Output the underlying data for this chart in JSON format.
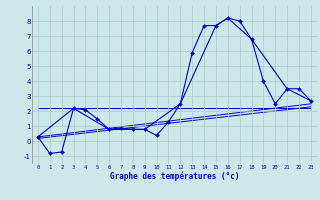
{
  "title": "Graphe des températures (°c)",
  "background_color": "#cce8e8",
  "grid_color": "#aacccc",
  "line_color": "#0000cc",
  "xlim": [
    -0.5,
    23.5
  ],
  "ylim": [
    -1.5,
    9.0
  ],
  "xticks": [
    0,
    1,
    2,
    3,
    4,
    5,
    6,
    7,
    8,
    9,
    10,
    11,
    12,
    13,
    14,
    15,
    16,
    17,
    18,
    19,
    20,
    21,
    22,
    23
  ],
  "yticks": [
    -1,
    0,
    1,
    2,
    3,
    4,
    5,
    6,
    7,
    8
  ],
  "main_series": {
    "x": [
      0,
      1,
      2,
      3,
      4,
      5,
      6,
      7,
      8,
      9,
      10,
      11,
      12,
      13,
      14,
      15,
      16,
      17,
      18,
      19,
      20,
      21,
      22,
      23
    ],
    "y": [
      0.3,
      -0.8,
      -0.7,
      2.2,
      2.1,
      1.5,
      0.8,
      0.9,
      0.8,
      0.8,
      0.4,
      1.3,
      2.5,
      5.9,
      7.7,
      7.7,
      8.2,
      8.0,
      6.8,
      4.0,
      2.5,
      3.5,
      3.5,
      2.7
    ]
  },
  "synoptic_series": {
    "x": [
      0,
      3,
      6,
      9,
      12,
      15,
      16,
      18,
      21,
      23
    ],
    "y": [
      0.3,
      2.2,
      0.8,
      0.8,
      2.5,
      7.7,
      8.2,
      6.8,
      3.5,
      2.7
    ]
  },
  "trend_line1": {
    "x": [
      0,
      23
    ],
    "y": [
      0.2,
      2.3
    ]
  },
  "trend_line2": {
    "x": [
      0,
      23
    ],
    "y": [
      0.3,
      2.5
    ]
  },
  "trend_line3": {
    "x": [
      0,
      23
    ],
    "y": [
      2.2,
      2.2
    ]
  }
}
